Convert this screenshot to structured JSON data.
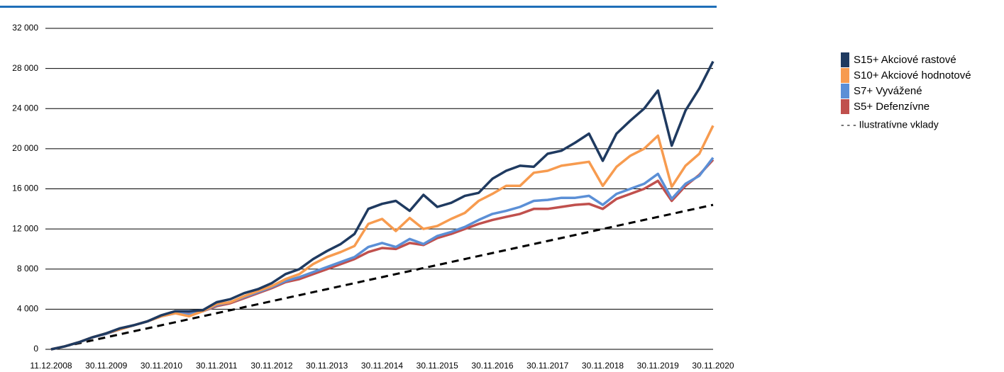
{
  "chart_data": {
    "type": "line",
    "categories": [
      "11.12.2008",
      null,
      null,
      null,
      "30.11.2009",
      null,
      null,
      null,
      "30.11.2010",
      null,
      null,
      null,
      "30.11.2011",
      null,
      null,
      null,
      "30.11.2012",
      null,
      null,
      null,
      "30.11.2013",
      null,
      null,
      null,
      "30.11.2014",
      null,
      null,
      null,
      "30.11.2015",
      null,
      null,
      null,
      "30.11.2016",
      null,
      null,
      null,
      "30.11.2017",
      null,
      null,
      null,
      "30.11.2018",
      null,
      null,
      null,
      "30.11.2019",
      null,
      null,
      null,
      "30.11.2020"
    ],
    "series": [
      {
        "name": "S15+ Akciové rastové",
        "color": "#1f3a60",
        "values": [
          0,
          300,
          700,
          1200,
          1600,
          2100,
          2400,
          2800,
          3400,
          3800,
          3800,
          3900,
          4700,
          5000,
          5600,
          6000,
          6600,
          7500,
          8000,
          9000,
          9800,
          10500,
          11500,
          14000,
          14500,
          14800,
          13800,
          15400,
          14200,
          14600,
          15300,
          15600,
          17000,
          17800,
          18300,
          18200,
          19500,
          19800,
          20600,
          21500,
          18800,
          21500,
          22800,
          24000,
          25800,
          20300,
          23800,
          26000,
          28700
        ]
      },
      {
        "name": "S10+ Akciové hodnotové",
        "color": "#f79b4f",
        "values": [
          0,
          300,
          700,
          1200,
          1600,
          2000,
          2400,
          2800,
          3300,
          3600,
          3300,
          3800,
          4500,
          4700,
          5300,
          5800,
          6300,
          7000,
          7500,
          8500,
          9200,
          9700,
          10300,
          12500,
          13000,
          11800,
          13100,
          12000,
          12300,
          13000,
          13600,
          14800,
          15500,
          16300,
          16300,
          17600,
          17800,
          18300,
          18500,
          18700,
          16300,
          18200,
          19300,
          20000,
          21300,
          16200,
          18300,
          19500,
          22300
        ]
      },
      {
        "name": "S7+ Vyvážené",
        "color": "#5b8fd6",
        "values": [
          0,
          300,
          700,
          1200,
          1550,
          2000,
          2400,
          2800,
          3300,
          3600,
          3500,
          3800,
          4400,
          4700,
          5200,
          5700,
          6200,
          6800,
          7200,
          7700,
          8200,
          8700,
          9200,
          10200,
          10600,
          10200,
          11000,
          10500,
          11300,
          11700,
          12200,
          12900,
          13500,
          13800,
          14200,
          14800,
          14900,
          15100,
          15100,
          15300,
          14400,
          15500,
          16000,
          16500,
          17500,
          15000,
          16500,
          17300,
          19100
        ]
      },
      {
        "name": "S5+ Defenzívne",
        "color": "#c0504d",
        "values": [
          0,
          300,
          700,
          1200,
          1550,
          2000,
          2400,
          2800,
          3300,
          3600,
          3600,
          3800,
          4300,
          4600,
          5100,
          5600,
          6100,
          6700,
          7000,
          7500,
          8000,
          8500,
          9000,
          9700,
          10100,
          10000,
          10600,
          10400,
          11100,
          11500,
          12000,
          12500,
          12900,
          13200,
          13500,
          14000,
          14000,
          14200,
          14400,
          14500,
          14000,
          15000,
          15500,
          16000,
          16800,
          14800,
          16300,
          17400,
          18900
        ]
      },
      {
        "name": "- - - Ilustratívne vklady",
        "color": "#000000",
        "dash": true,
        "values": [
          0,
          300,
          600,
          900,
          1200,
          1500,
          1800,
          2100,
          2400,
          2700,
          3000,
          3300,
          3600,
          3900,
          4200,
          4500,
          4800,
          5100,
          5400,
          5700,
          6000,
          6300,
          6600,
          6900,
          7200,
          7500,
          7800,
          8100,
          8400,
          8700,
          9000,
          9300,
          9600,
          9900,
          10200,
          10500,
          10800,
          11100,
          11400,
          11700,
          12000,
          12300,
          12600,
          12900,
          13200,
          13500,
          13800,
          14100,
          14400
        ]
      }
    ],
    "ylim": [
      0,
      32000
    ],
    "yticks": [
      0,
      {
        "value": 4000,
        "label": "4 000"
      },
      {
        "value": 8000,
        "label": "8 000"
      },
      {
        "value": 12000,
        "label": "12 000"
      },
      {
        "value": 16000,
        "label": "16 000"
      },
      {
        "value": 20000,
        "label": "20 000"
      },
      {
        "value": 24000,
        "label": "24 000"
      },
      {
        "value": 28000,
        "label": "28 000"
      },
      {
        "value": 32000,
        "label": "32 000"
      }
    ],
    "grid": true,
    "legend": "right"
  }
}
